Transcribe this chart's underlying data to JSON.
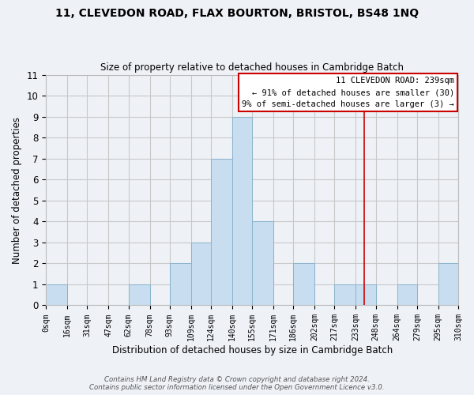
{
  "title": "11, CLEVEDON ROAD, FLAX BOURTON, BRISTOL, BS48 1NQ",
  "subtitle": "Size of property relative to detached houses in Cambridge Batch",
  "xlabel": "Distribution of detached houses by size in Cambridge Batch",
  "ylabel": "Number of detached properties",
  "footer_line1": "Contains HM Land Registry data © Crown copyright and database right 2024.",
  "footer_line2": "Contains public sector information licensed under the Open Government Licence v3.0.",
  "bin_edges": [
    0,
    16,
    31,
    47,
    62,
    78,
    93,
    109,
    124,
    140,
    155,
    171,
    186,
    202,
    217,
    233,
    248,
    264,
    279,
    295,
    310
  ],
  "bin_labels": [
    "0sqm",
    "16sqm",
    "31sqm",
    "47sqm",
    "62sqm",
    "78sqm",
    "93sqm",
    "109sqm",
    "124sqm",
    "140sqm",
    "155sqm",
    "171sqm",
    "186sqm",
    "202sqm",
    "217sqm",
    "233sqm",
    "248sqm",
    "264sqm",
    "279sqm",
    "295sqm",
    "310sqm"
  ],
  "counts": [
    1,
    0,
    0,
    0,
    1,
    0,
    2,
    3,
    7,
    9,
    4,
    0,
    2,
    0,
    1,
    1,
    0,
    1,
    0,
    2
  ],
  "bar_color": "#c8ddef",
  "bar_edge_color": "#8ab4cc",
  "grid_color": "#c8c8c8",
  "background_color": "#eef2f7",
  "red_line_x": 239,
  "annotation_title": "11 CLEVEDON ROAD: 239sqm",
  "annotation_line1": "← 91% of detached houses are smaller (30)",
  "annotation_line2": "9% of semi-detached houses are larger (3) →",
  "annotation_box_color": "#cc0000",
  "ylim": [
    0,
    11
  ],
  "yticks": [
    0,
    1,
    2,
    3,
    4,
    5,
    6,
    7,
    8,
    9,
    10,
    11
  ]
}
